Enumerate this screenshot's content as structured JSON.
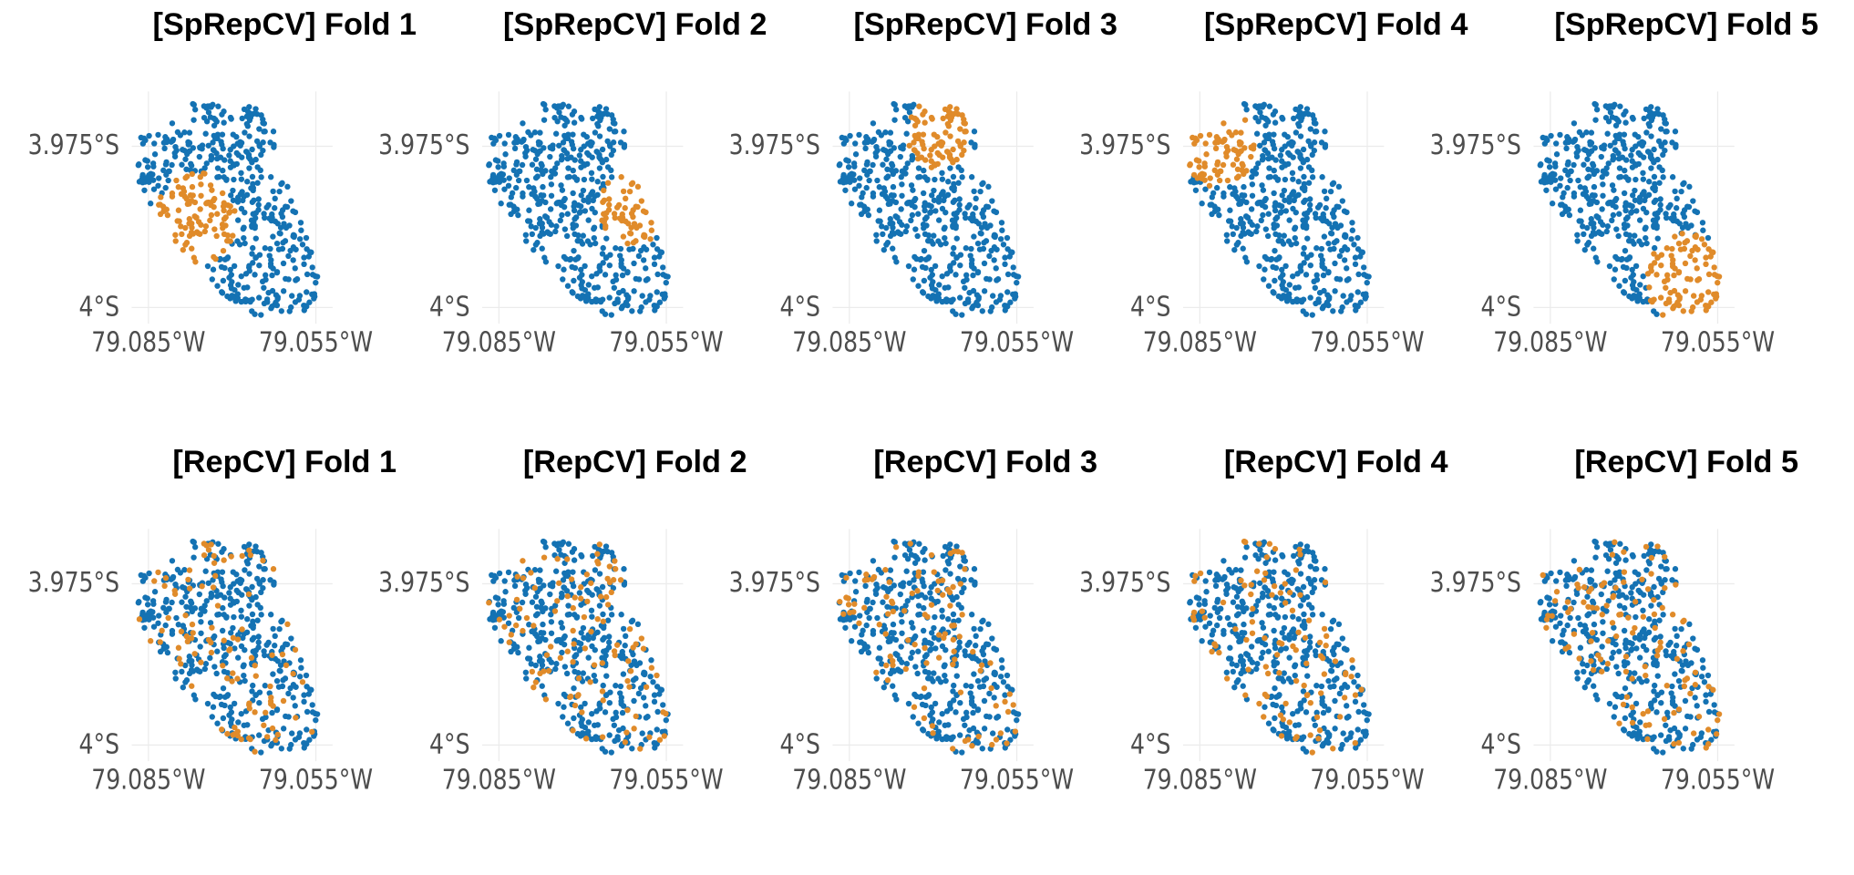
{
  "colors": {
    "assessment": "#E08B2A",
    "training": "#1472B3",
    "grid": "#EBEBEB",
    "tick_text": "#4D4D4D"
  },
  "chart_data": [
    {
      "type": "scatter",
      "title": "[SpRepCV] Fold 1",
      "x_ticks": [
        "79.085°W",
        "79.055°W"
      ],
      "y_ticks": [
        "3.975°S",
        "4°S"
      ],
      "xlim": [
        -79.088,
        -79.052
      ],
      "ylim": [
        -4.0025,
        -3.9665
      ],
      "grid": true,
      "highlight_region": "south-west"
    },
    {
      "type": "scatter",
      "title": "[SpRepCV] Fold 2",
      "x_ticks": [
        "79.085°W",
        "79.055°W"
      ],
      "y_ticks": [
        "3.975°S",
        "4°S"
      ],
      "xlim": [
        -79.088,
        -79.052
      ],
      "ylim": [
        -4.0025,
        -3.9665
      ],
      "grid": true,
      "highlight_region": "east"
    },
    {
      "type": "scatter",
      "title": "[SpRepCV] Fold 3",
      "x_ticks": [
        "79.085°W",
        "79.055°W"
      ],
      "y_ticks": [
        "3.975°S",
        "4°S"
      ],
      "xlim": [
        -79.088,
        -79.052
      ],
      "ylim": [
        -4.0025,
        -3.9665
      ],
      "grid": true,
      "highlight_region": "north-east"
    },
    {
      "type": "scatter",
      "title": "[SpRepCV] Fold 4",
      "x_ticks": [
        "79.085°W",
        "79.055°W"
      ],
      "y_ticks": [
        "3.975°S",
        "4°S"
      ],
      "xlim": [
        -79.088,
        -79.052
      ],
      "ylim": [
        -4.0025,
        -3.9665
      ],
      "grid": true,
      "highlight_region": "north-west"
    },
    {
      "type": "scatter",
      "title": "[SpRepCV] Fold 5",
      "x_ticks": [
        "79.085°W",
        "79.055°W"
      ],
      "y_ticks": [
        "3.975°S",
        "4°S"
      ],
      "xlim": [
        -79.088,
        -79.052
      ],
      "ylim": [
        -4.0025,
        -3.9665
      ],
      "grid": true,
      "highlight_region": "south-east"
    },
    {
      "type": "scatter",
      "title": "[RepCV] Fold 1",
      "x_ticks": [
        "79.085°W",
        "79.055°W"
      ],
      "y_ticks": [
        "3.975°S",
        "4°S"
      ],
      "xlim": [
        -79.088,
        -79.052
      ],
      "ylim": [
        -4.0025,
        -3.9665
      ],
      "grid": true,
      "highlight_region": "random"
    },
    {
      "type": "scatter",
      "title": "[RepCV] Fold 2",
      "x_ticks": [
        "79.085°W",
        "79.055°W"
      ],
      "y_ticks": [
        "3.975°S",
        "4°S"
      ],
      "xlim": [
        -79.088,
        -79.052
      ],
      "ylim": [
        -4.0025,
        -3.9665
      ],
      "grid": true,
      "highlight_region": "random"
    },
    {
      "type": "scatter",
      "title": "[RepCV] Fold 3",
      "x_ticks": [
        "79.085°W",
        "79.055°W"
      ],
      "y_ticks": [
        "3.975°S",
        "4°S"
      ],
      "xlim": [
        -79.088,
        -79.052
      ],
      "ylim": [
        -4.0025,
        -3.9665
      ],
      "grid": true,
      "highlight_region": "random"
    },
    {
      "type": "scatter",
      "title": "[RepCV] Fold 4",
      "x_ticks": [
        "79.085°W",
        "79.055°W"
      ],
      "y_ticks": [
        "3.975°S",
        "4°S"
      ],
      "xlim": [
        -79.088,
        -79.052
      ],
      "ylim": [
        -4.0025,
        -3.9665
      ],
      "grid": true,
      "highlight_region": "random"
    },
    {
      "type": "scatter",
      "title": "[RepCV] Fold 5",
      "x_ticks": [
        "79.085°W",
        "79.055°W"
      ],
      "y_ticks": [
        "3.975°S",
        "4°S"
      ],
      "xlim": [
        -79.088,
        -79.052
      ],
      "ylim": [
        -4.0025,
        -3.9665
      ],
      "grid": true,
      "highlight_region": "random"
    }
  ]
}
